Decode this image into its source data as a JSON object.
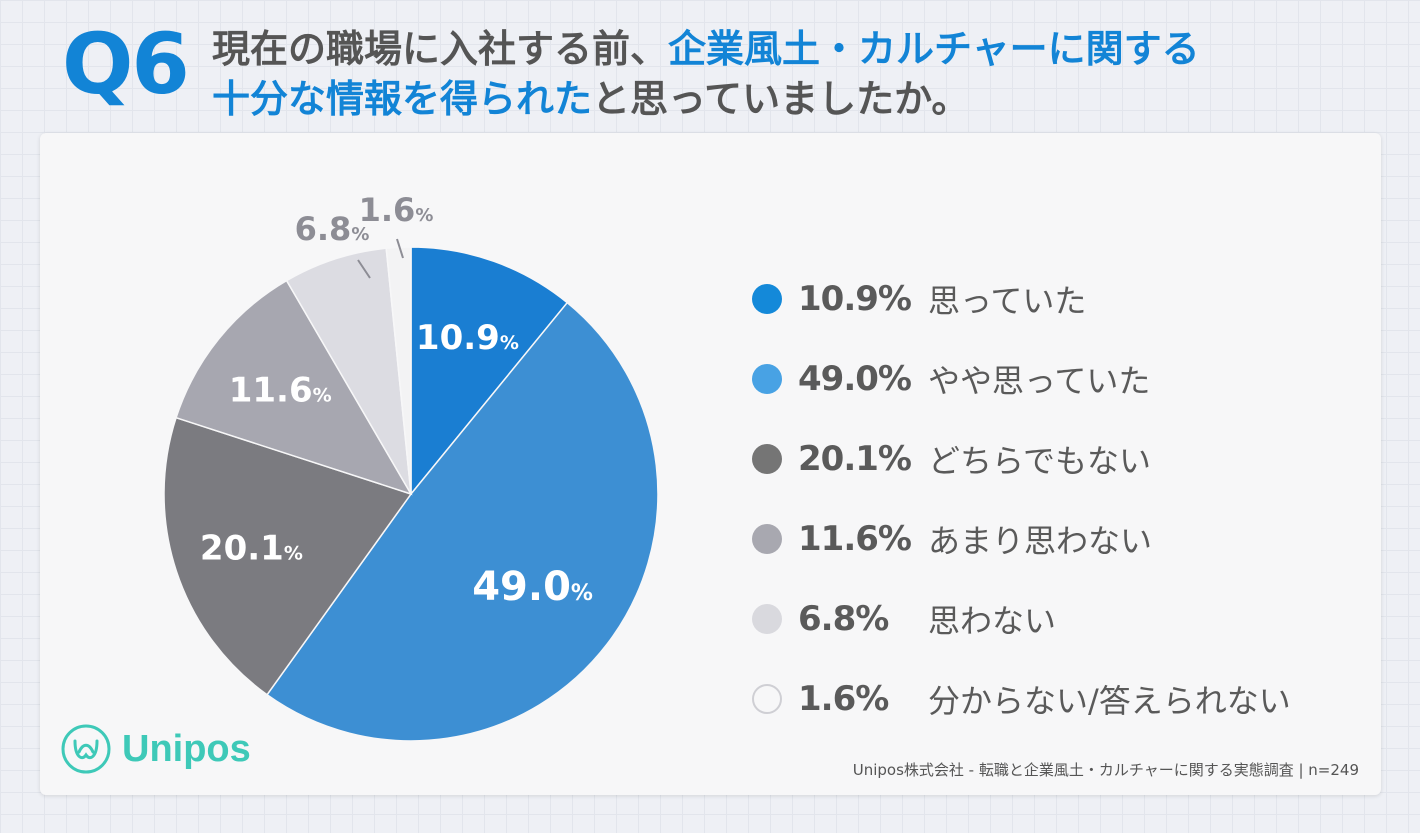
{
  "header": {
    "q_label": "Q6",
    "title_line1_a": "現在の職場に入社する前、",
    "title_line1_b": "企業風土・カルチャーに関する",
    "title_line2_a": "十分な情報を得られた",
    "title_line2_b": "と思っていましたか。"
  },
  "chart_data": {
    "type": "pie",
    "title": "現在の職場に入社する前、企業風土・カルチャーに関する十分な情報を得られたと思っていましたか。",
    "slices": [
      {
        "label": "思っていた",
        "value": 10.9,
        "value_text": "10.9",
        "color": "#1a7ed2",
        "label_inside": true
      },
      {
        "label": "やや思っていた",
        "value": 49.0,
        "value_text": "49.0",
        "color": "#3d8fd3",
        "label_inside": true
      },
      {
        "label": "どちらでもない",
        "value": 20.1,
        "value_text": "20.1",
        "color": "#7b7b80",
        "label_inside": true
      },
      {
        "label": "あまり思わない",
        "value": 11.6,
        "value_text": "11.6",
        "color": "#a7a7b0",
        "label_inside": true
      },
      {
        "label": "思わない",
        "value": 6.8,
        "value_text": "6.8",
        "color": "#dcdce2",
        "label_inside": false
      },
      {
        "label": "分からない/答えられない",
        "value": 1.6,
        "value_text": "1.6",
        "color": "#f3f3f4",
        "label_inside": false
      }
    ],
    "unit": "%"
  },
  "legend": {
    "items": [
      {
        "pct": "10.9%",
        "label": "思っていた",
        "color": "#1489d9"
      },
      {
        "pct": "49.0%",
        "label": "やや思っていた",
        "color": "#48a2e4"
      },
      {
        "pct": "20.1%",
        "label": "どちらでもない",
        "color": "#757575"
      },
      {
        "pct": "11.6%",
        "label": "あまり思わない",
        "color": "#a8a8b0"
      },
      {
        "pct": "6.8%",
        "label": "思わない",
        "color": "#d9d9de"
      },
      {
        "pct": "1.6%",
        "label": "分からない/答えられない",
        "color": "#f7f7f8"
      }
    ]
  },
  "logo": {
    "name": "Unipos",
    "color": "#3ec9b8"
  },
  "footer": {
    "source": "Unipos株式会社 - 転職と企業風土・カルチャーに関する実態調査 | n=249"
  }
}
